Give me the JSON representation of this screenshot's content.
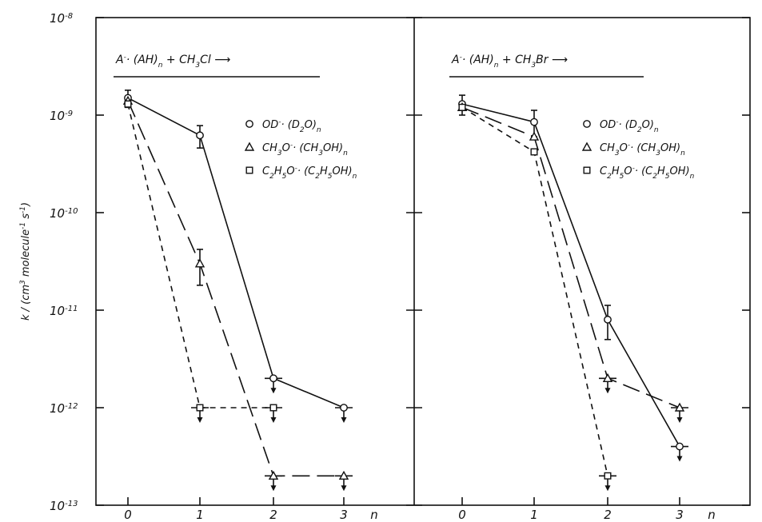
{
  "chart_data": {
    "type": "scatter",
    "yscale": "log",
    "ylim": [
      1e-13,
      1e-08
    ],
    "y_ticks": [
      {
        "value": 1e-08,
        "base": "10",
        "exp": "-8"
      },
      {
        "value": 1e-09,
        "base": "10",
        "exp": "-9"
      },
      {
        "value": 1e-10,
        "base": "10",
        "exp": "-10"
      },
      {
        "value": 1e-11,
        "base": "10",
        "exp": "-11"
      },
      {
        "value": 1e-12,
        "base": "10",
        "exp": "-12"
      },
      {
        "value": 1e-13,
        "base": "10",
        "exp": "-13"
      }
    ],
    "x_ticks": [
      "0",
      "1",
      "2",
      "3"
    ],
    "xlabel": "n",
    "ylabel": {
      "parts": [
        {
          "t": "k / (cm",
          "s": ""
        },
        {
          "t": "3",
          "s": "sup"
        },
        {
          "t": " molecule",
          "s": ""
        },
        {
          "t": "-1",
          "s": "sup"
        },
        {
          "t": " s",
          "s": ""
        },
        {
          "t": "-1",
          "s": "sup"
        },
        {
          "t": ")",
          "s": ""
        }
      ]
    },
    "panels": [
      {
        "reaction": {
          "parts": [
            {
              "t": "A",
              "s": ""
            },
            {
              "t": "-",
              "s": "sup"
            },
            {
              "t": "· (AH)",
              "s": ""
            },
            {
              "t": "n",
              "s": "sub"
            },
            {
              "t": " + CH",
              "s": ""
            },
            {
              "t": "3",
              "s": "sub"
            },
            {
              "t": "Cl  ⟶",
              "s": ""
            }
          ]
        },
        "legend": [
          {
            "marker": "circle",
            "parts": [
              {
                "t": "OD",
                "s": ""
              },
              {
                "t": "-",
                "s": "sup"
              },
              {
                "t": "· (D",
                "s": ""
              },
              {
                "t": "2",
                "s": "sub"
              },
              {
                "t": "O)",
                "s": ""
              },
              {
                "t": "n",
                "s": "sub"
              }
            ]
          },
          {
            "marker": "triangle",
            "parts": [
              {
                "t": "CH",
                "s": ""
              },
              {
                "t": "3",
                "s": "sub"
              },
              {
                "t": "O",
                "s": ""
              },
              {
                "t": "-",
                "s": "sup"
              },
              {
                "t": "· (CH",
                "s": ""
              },
              {
                "t": "3",
                "s": "sub"
              },
              {
                "t": "OH)",
                "s": ""
              },
              {
                "t": "n",
                "s": "sub"
              }
            ]
          },
          {
            "marker": "square",
            "parts": [
              {
                "t": "C",
                "s": ""
              },
              {
                "t": "2",
                "s": "sub"
              },
              {
                "t": "H",
                "s": ""
              },
              {
                "t": "5",
                "s": "sub"
              },
              {
                "t": "O",
                "s": ""
              },
              {
                "t": "-",
                "s": "sup"
              },
              {
                "t": "· (C",
                "s": ""
              },
              {
                "t": "2",
                "s": "sub"
              },
              {
                "t": "H",
                "s": ""
              },
              {
                "t": "5",
                "s": "sub"
              },
              {
                "t": "OH)",
                "s": ""
              },
              {
                "t": "n",
                "s": "sub"
              }
            ]
          }
        ],
        "series": [
          {
            "marker": "circle",
            "dash": "solid",
            "points": [
              {
                "x": 0,
                "y": 1.5e-09,
                "err": [
                  1.2e-09,
                  1.8e-09
                ]
              },
              {
                "x": 1,
                "y": 6.2e-10,
                "err": [
                  4.6e-10,
                  7.8e-10
                ]
              },
              {
                "x": 2,
                "y": 2e-12,
                "upper_limit": true
              },
              {
                "x": 3,
                "y": 1e-12,
                "upper_limit": true
              }
            ]
          },
          {
            "marker": "triangle",
            "dash": "long",
            "points": [
              {
                "x": 0,
                "y": 1.4e-09
              },
              {
                "x": 1,
                "y": 3e-11,
                "err": [
                  1.8e-11,
                  4.2e-11
                ]
              },
              {
                "x": 2,
                "y": 2e-13,
                "upper_limit": true
              },
              {
                "x": 3,
                "y": 2e-13,
                "upper_limit": true
              }
            ]
          },
          {
            "marker": "square",
            "dash": "short",
            "points": [
              {
                "x": 0,
                "y": 1.3e-09
              },
              {
                "x": 1,
                "y": 1e-12,
                "upper_limit": true
              },
              {
                "x": 2,
                "y": 1e-12,
                "upper_limit": true
              }
            ]
          }
        ]
      },
      {
        "reaction": {
          "parts": [
            {
              "t": "A",
              "s": ""
            },
            {
              "t": "-",
              "s": "sup"
            },
            {
              "t": "· (AH)",
              "s": ""
            },
            {
              "t": "n",
              "s": "sub"
            },
            {
              "t": " + CH",
              "s": ""
            },
            {
              "t": "3",
              "s": "sub"
            },
            {
              "t": "Br  ⟶",
              "s": ""
            }
          ]
        },
        "legend": [
          {
            "marker": "circle",
            "parts": [
              {
                "t": "OD",
                "s": ""
              },
              {
                "t": "-",
                "s": "sup"
              },
              {
                "t": "· (D",
                "s": ""
              },
              {
                "t": "2",
                "s": "sub"
              },
              {
                "t": "O)",
                "s": ""
              },
              {
                "t": "n",
                "s": "sub"
              }
            ]
          },
          {
            "marker": "triangle",
            "parts": [
              {
                "t": "CH",
                "s": ""
              },
              {
                "t": "3",
                "s": "sub"
              },
              {
                "t": "O",
                "s": ""
              },
              {
                "t": "-",
                "s": "sup"
              },
              {
                "t": "· (CH",
                "s": ""
              },
              {
                "t": "3",
                "s": "sub"
              },
              {
                "t": "OH)",
                "s": ""
              },
              {
                "t": "n",
                "s": "sub"
              }
            ]
          },
          {
            "marker": "square",
            "parts": [
              {
                "t": "C",
                "s": ""
              },
              {
                "t": "2",
                "s": "sub"
              },
              {
                "t": "H",
                "s": ""
              },
              {
                "t": "5",
                "s": "sub"
              },
              {
                "t": "O",
                "s": ""
              },
              {
                "t": "-",
                "s": "sup"
              },
              {
                "t": "· (C",
                "s": ""
              },
              {
                "t": "2",
                "s": "sub"
              },
              {
                "t": "H",
                "s": ""
              },
              {
                "t": "5",
                "s": "sub"
              },
              {
                "t": "OH)",
                "s": ""
              },
              {
                "t": "n",
                "s": "sub"
              }
            ]
          }
        ],
        "series": [
          {
            "marker": "circle",
            "dash": "solid",
            "points": [
              {
                "x": 0,
                "y": 1.3e-09,
                "err": [
                  1e-09,
                  1.6e-09
                ]
              },
              {
                "x": 1,
                "y": 8.5e-10,
                "err": [
                  6e-10,
                  1.12e-09
                ]
              },
              {
                "x": 2,
                "y": 8e-12,
                "err": [
                  5e-12,
                  1.12e-11
                ]
              },
              {
                "x": 3,
                "y": 4e-13,
                "upper_limit": true
              }
            ]
          },
          {
            "marker": "triangle",
            "dash": "long",
            "points": [
              {
                "x": 0,
                "y": 1.2e-09
              },
              {
                "x": 1,
                "y": 6e-10
              },
              {
                "x": 2,
                "y": 2e-12,
                "upper_limit": true
              },
              {
                "x": 3,
                "y": 1e-12,
                "upper_limit": true
              }
            ]
          },
          {
            "marker": "square",
            "dash": "short",
            "points": [
              {
                "x": 0,
                "y": 1.2e-09
              },
              {
                "x": 1,
                "y": 4.2e-10
              },
              {
                "x": 2,
                "y": 2e-13,
                "upper_limit": true
              }
            ]
          }
        ]
      }
    ]
  }
}
